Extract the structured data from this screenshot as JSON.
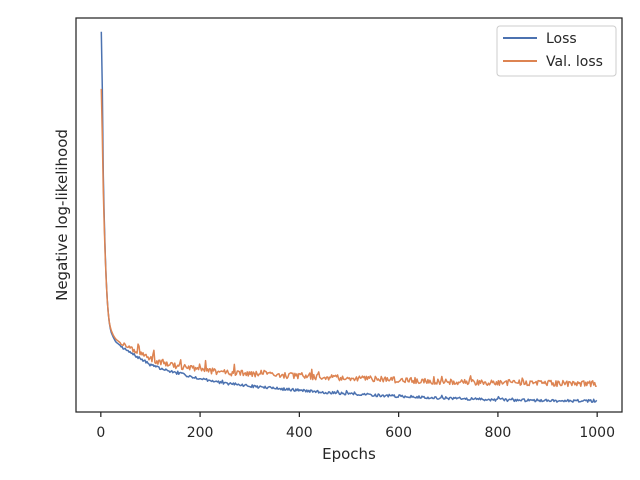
{
  "chart_data": {
    "type": "line",
    "title": "",
    "xlabel": "Epochs",
    "ylabel": "Negative log-likelihood",
    "xlim": [
      -50,
      1050
    ],
    "ylim": [
      0,
      1
    ],
    "x_ticks": [
      0,
      200,
      400,
      600,
      800,
      1000
    ],
    "y_ticks_shown": false,
    "grid": false,
    "legend": "top-right",
    "series": [
      {
        "name": "Loss",
        "color": "#4c72b0",
        "x": [
          1,
          3,
          5,
          8,
          12,
          16,
          20,
          25,
          30,
          40,
          50,
          60,
          80,
          100,
          120,
          150,
          200,
          250,
          300,
          350,
          400,
          450,
          500,
          550,
          600,
          650,
          700,
          750,
          800,
          850,
          900,
          950,
          1000
        ],
        "y": [
          0.965,
          0.82,
          0.6,
          0.43,
          0.3,
          0.235,
          0.205,
          0.19,
          0.178,
          0.168,
          0.158,
          0.15,
          0.135,
          0.12,
          0.11,
          0.1,
          0.085,
          0.073,
          0.066,
          0.06,
          0.055,
          0.05,
          0.046,
          0.043,
          0.04,
          0.037,
          0.035,
          0.033,
          0.031,
          0.03,
          0.029,
          0.028,
          0.028
        ]
      },
      {
        "name": "Val. loss",
        "color": "#dd8452",
        "x": [
          1,
          3,
          5,
          8,
          12,
          16,
          20,
          25,
          30,
          40,
          50,
          60,
          80,
          100,
          120,
          150,
          200,
          250,
          300,
          350,
          400,
          450,
          500,
          550,
          600,
          650,
          700,
          750,
          800,
          850,
          900,
          950,
          1000
        ],
        "y": [
          0.82,
          0.7,
          0.56,
          0.42,
          0.3,
          0.235,
          0.21,
          0.195,
          0.185,
          0.175,
          0.168,
          0.16,
          0.148,
          0.135,
          0.126,
          0.118,
          0.108,
          0.1,
          0.097,
          0.094,
          0.091,
          0.088,
          0.086,
          0.084,
          0.081,
          0.079,
          0.077,
          0.076,
          0.075,
          0.074,
          0.073,
          0.072,
          0.072
        ]
      }
    ]
  }
}
